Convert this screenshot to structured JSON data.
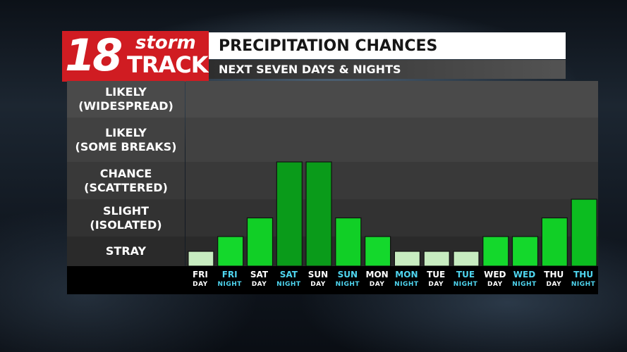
{
  "logo": {
    "number": "18",
    "word1": "storm",
    "word2": "TRACK",
    "color": "#d01c22"
  },
  "header": {
    "title": "PRECIPITATION CHANCES",
    "subtitle": "NEXT SEVEN DAYS & NIGHTS"
  },
  "colors": {
    "night_label": "#4fd6f0",
    "day_label": "#ffffff"
  },
  "chart_data": {
    "type": "bar",
    "title": "PRECIPITATION CHANCES",
    "subtitle": "NEXT SEVEN DAYS & NIGHTS",
    "y_levels": [
      {
        "value": 1,
        "label": "STRAY"
      },
      {
        "value": 2,
        "label": "SLIGHT\n(ISOLATED)"
      },
      {
        "value": 3,
        "label": "CHANCE\n(SCATTERED)"
      },
      {
        "value": 4,
        "label": "LIKELY\n(SOME BREAKS)"
      },
      {
        "value": 5,
        "label": "LIKELY\n(WIDESPREAD)"
      }
    ],
    "ylim": [
      0,
      5
    ],
    "categories": [
      {
        "day": "FRI",
        "part": "DAY",
        "is_night": false
      },
      {
        "day": "FRI",
        "part": "NIGHT",
        "is_night": true
      },
      {
        "day": "SAT",
        "part": "DAY",
        "is_night": false
      },
      {
        "day": "SAT",
        "part": "NIGHT",
        "is_night": true
      },
      {
        "day": "SUN",
        "part": "DAY",
        "is_night": false
      },
      {
        "day": "SUN",
        "part": "NIGHT",
        "is_night": true
      },
      {
        "day": "MON",
        "part": "DAY",
        "is_night": false
      },
      {
        "day": "MON",
        "part": "NIGHT",
        "is_night": true
      },
      {
        "day": "TUE",
        "part": "DAY",
        "is_night": false
      },
      {
        "day": "TUE",
        "part": "NIGHT",
        "is_night": true
      },
      {
        "day": "WED",
        "part": "DAY",
        "is_night": false
      },
      {
        "day": "WED",
        "part": "NIGHT",
        "is_night": true
      },
      {
        "day": "THU",
        "part": "DAY",
        "is_night": false
      },
      {
        "day": "THU",
        "part": "NIGHT",
        "is_night": true
      }
    ],
    "values": [
      0.5,
      1.0,
      1.5,
      3.0,
      3.0,
      1.5,
      1.0,
      0.5,
      0.5,
      0.5,
      1.0,
      1.0,
      1.5,
      2.0
    ],
    "bar_colors": {
      "0.5": "#c7ecc0",
      "1": "#14d82c",
      "1.5": "#11cf26",
      "2": "#0cbd20",
      "3": "#0a9b1a"
    },
    "band_colors": [
      "#4a4a4a",
      "#414141",
      "#393939",
      "#323232",
      "#2a2a2a"
    ]
  }
}
